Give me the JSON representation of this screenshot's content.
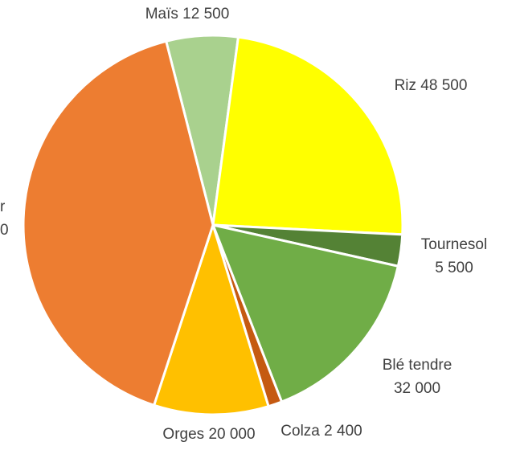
{
  "chart_data": {
    "type": "pie",
    "categories": [
      "Maïs",
      "Riz",
      "Tournesol",
      "Blé tendre",
      "Colza",
      "Orges",
      null
    ],
    "values": [
      12500,
      48500,
      5500,
      32000,
      2400,
      20000,
      84000
    ],
    "value_labels": [
      "12 500",
      "48 500",
      "5 500",
      "32 000",
      "2 400",
      "20 000",
      null
    ],
    "colors": [
      "#a9d18e",
      "#ffff00",
      "#548235",
      "#70ad47",
      "#c55a11",
      "#ffc000",
      "#ed7d31"
    ],
    "annotations": [
      "r",
      "0"
    ]
  }
}
